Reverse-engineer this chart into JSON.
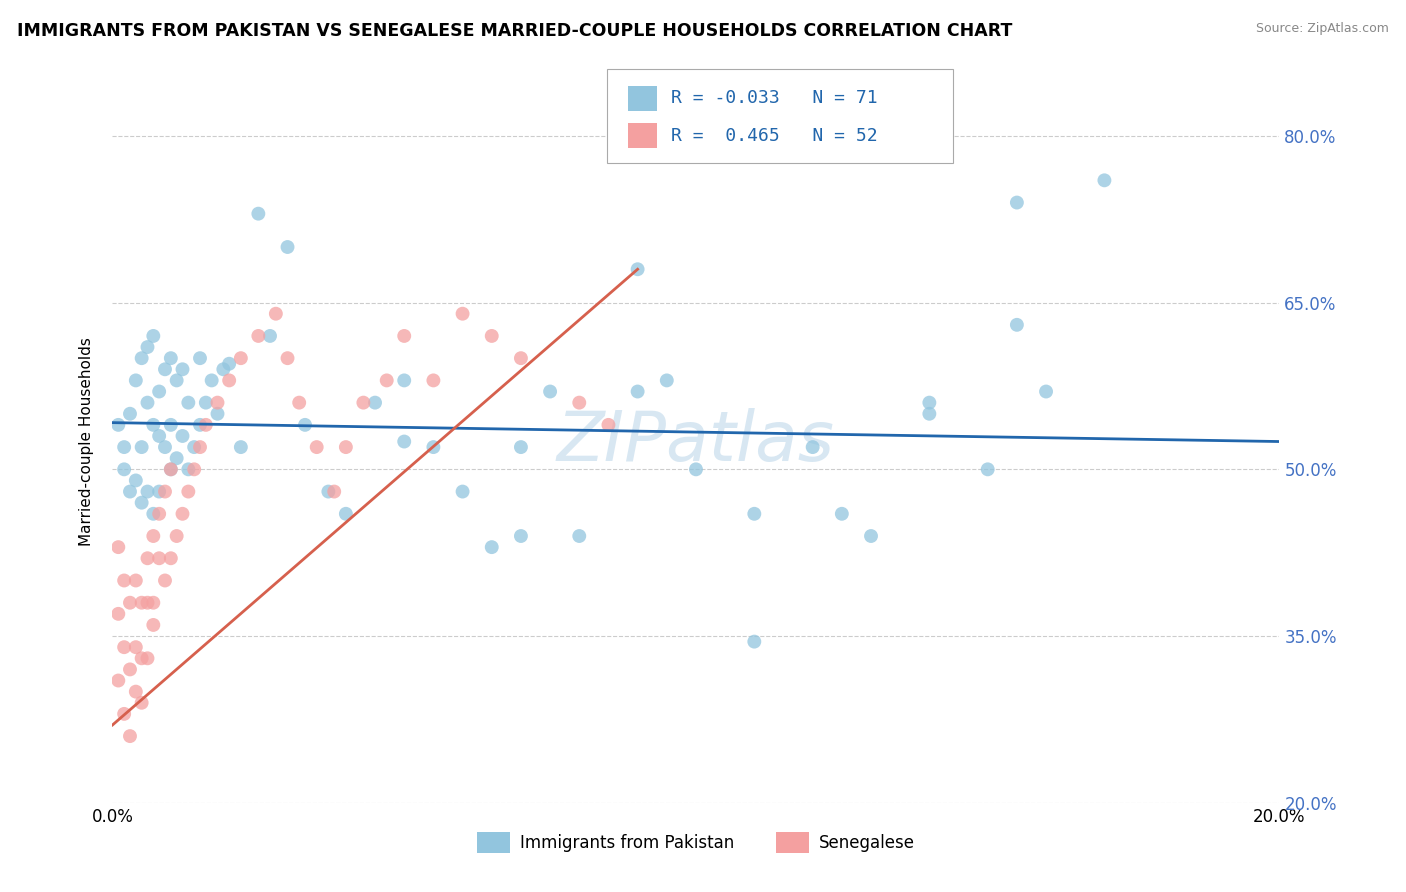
{
  "title": "IMMIGRANTS FROM PAKISTAN VS SENEGALESE MARRIED-COUPLE HOUSEHOLDS CORRELATION CHART",
  "source": "Source: ZipAtlas.com",
  "ylabel": "Married-couple Households",
  "xlim": [
    0.0,
    0.2
  ],
  "ylim": [
    0.2,
    0.85
  ],
  "ytick_values": [
    0.2,
    0.35,
    0.5,
    0.65,
    0.8
  ],
  "ytick_labels": [
    "20.0%",
    "35.0%",
    "50.0%",
    "65.0%",
    "80.0%"
  ],
  "legend_R1": "-0.033",
  "legend_N1": "71",
  "legend_R2": "0.465",
  "legend_N2": "52",
  "blue_color": "#92c5de",
  "pink_color": "#f4a0a0",
  "trend_blue_color": "#2166ac",
  "trend_pink_color": "#d6604d",
  "watermark": "ZIPatlas",
  "blue_scatter_x": [
    0.001,
    0.002,
    0.002,
    0.003,
    0.003,
    0.004,
    0.004,
    0.005,
    0.005,
    0.005,
    0.006,
    0.006,
    0.006,
    0.007,
    0.007,
    0.007,
    0.008,
    0.008,
    0.008,
    0.009,
    0.009,
    0.01,
    0.01,
    0.01,
    0.011,
    0.011,
    0.012,
    0.012,
    0.013,
    0.013,
    0.014,
    0.015,
    0.015,
    0.016,
    0.017,
    0.018,
    0.019,
    0.02,
    0.022,
    0.025,
    0.027,
    0.03,
    0.033,
    0.037,
    0.04,
    0.045,
    0.05,
    0.055,
    0.06,
    0.065,
    0.07,
    0.075,
    0.08,
    0.09,
    0.095,
    0.1,
    0.11,
    0.12,
    0.13,
    0.14,
    0.15,
    0.155,
    0.16,
    0.17,
    0.155,
    0.14,
    0.125,
    0.11,
    0.09,
    0.07,
    0.05
  ],
  "blue_scatter_y": [
    0.54,
    0.5,
    0.52,
    0.48,
    0.55,
    0.49,
    0.58,
    0.47,
    0.52,
    0.6,
    0.48,
    0.56,
    0.61,
    0.46,
    0.54,
    0.62,
    0.48,
    0.53,
    0.57,
    0.52,
    0.59,
    0.5,
    0.54,
    0.6,
    0.51,
    0.58,
    0.53,
    0.59,
    0.5,
    0.56,
    0.52,
    0.54,
    0.6,
    0.56,
    0.58,
    0.55,
    0.59,
    0.595,
    0.52,
    0.73,
    0.62,
    0.7,
    0.54,
    0.48,
    0.46,
    0.56,
    0.58,
    0.52,
    0.48,
    0.43,
    0.52,
    0.57,
    0.44,
    0.68,
    0.58,
    0.5,
    0.46,
    0.52,
    0.44,
    0.55,
    0.5,
    0.63,
    0.57,
    0.76,
    0.74,
    0.56,
    0.46,
    0.345,
    0.57,
    0.44,
    0.525
  ],
  "pink_scatter_x": [
    0.001,
    0.001,
    0.001,
    0.002,
    0.002,
    0.002,
    0.003,
    0.003,
    0.003,
    0.004,
    0.004,
    0.004,
    0.005,
    0.005,
    0.005,
    0.006,
    0.006,
    0.006,
    0.007,
    0.007,
    0.007,
    0.008,
    0.008,
    0.009,
    0.009,
    0.01,
    0.01,
    0.011,
    0.012,
    0.013,
    0.014,
    0.015,
    0.016,
    0.018,
    0.02,
    0.022,
    0.025,
    0.028,
    0.03,
    0.032,
    0.035,
    0.038,
    0.04,
    0.043,
    0.047,
    0.05,
    0.055,
    0.06,
    0.065,
    0.07,
    0.08,
    0.085
  ],
  "pink_scatter_y": [
    0.43,
    0.37,
    0.31,
    0.4,
    0.34,
    0.28,
    0.38,
    0.32,
    0.26,
    0.4,
    0.34,
    0.3,
    0.38,
    0.33,
    0.29,
    0.38,
    0.33,
    0.42,
    0.36,
    0.44,
    0.38,
    0.42,
    0.46,
    0.4,
    0.48,
    0.42,
    0.5,
    0.44,
    0.46,
    0.48,
    0.5,
    0.52,
    0.54,
    0.56,
    0.58,
    0.6,
    0.62,
    0.64,
    0.6,
    0.56,
    0.52,
    0.48,
    0.52,
    0.56,
    0.58,
    0.62,
    0.58,
    0.64,
    0.62,
    0.6,
    0.56,
    0.54
  ],
  "blue_trend_x": [
    0.0,
    0.2
  ],
  "blue_trend_y": [
    0.542,
    0.525
  ],
  "pink_trend_x": [
    0.0,
    0.09
  ],
  "pink_trend_y": [
    0.27,
    0.68
  ]
}
